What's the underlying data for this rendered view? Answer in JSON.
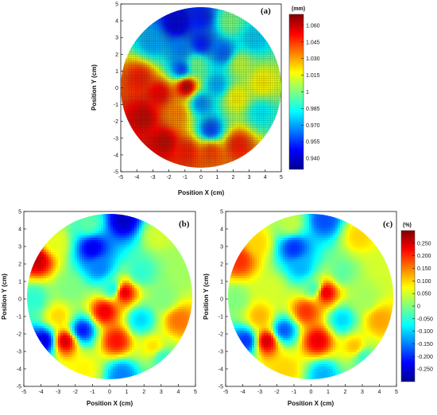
{
  "chart_data": [
    {
      "type": "heatmap",
      "panel_label": "(a)",
      "xlabel": "Position X (cm)",
      "ylabel": "Position Y (cm)",
      "xlim": [
        -5,
        5
      ],
      "ylim": [
        -5,
        5
      ],
      "xticks": [
        "-5",
        "-4",
        "-3",
        "-2",
        "-1",
        "0",
        "1",
        "2",
        "3",
        "4",
        "5"
      ],
      "yticks": [
        "-5",
        "-4",
        "-3",
        "-2",
        "-1",
        "0",
        "1",
        "2",
        "3",
        "4",
        "5"
      ],
      "grid": true,
      "colorbar": {
        "title": "(mm)",
        "range": [
          0.93,
          1.07
        ],
        "ticks": [
          "1.060",
          "1.045",
          "1.030",
          "1.015",
          "1",
          "0.985",
          "0.970",
          "0.955",
          "0.940"
        ],
        "tick_values": [
          1.06,
          1.045,
          1.03,
          1.015,
          1.0,
          0.985,
          0.97,
          0.955,
          0.94
        ]
      },
      "field": [
        {
          "x": 0.0,
          "y": 4.2,
          "v": 0.95
        },
        {
          "x": -1.5,
          "y": 3.8,
          "v": 0.94
        },
        {
          "x": -3.0,
          "y": 2.7,
          "v": 0.97
        },
        {
          "x": 1.8,
          "y": 3.9,
          "v": 1.0
        },
        {
          "x": 3.3,
          "y": 2.9,
          "v": 0.975
        },
        {
          "x": 0.0,
          "y": 2.6,
          "v": 0.95
        },
        {
          "x": -1.2,
          "y": 2.3,
          "v": 0.965
        },
        {
          "x": 1.4,
          "y": 2.1,
          "v": 0.96
        },
        {
          "x": -3.8,
          "y": 0.6,
          "v": 1.05
        },
        {
          "x": -2.6,
          "y": -0.3,
          "v": 1.055
        },
        {
          "x": -3.6,
          "y": -1.7,
          "v": 1.06
        },
        {
          "x": -2.3,
          "y": -3.2,
          "v": 1.06
        },
        {
          "x": -0.9,
          "y": -3.8,
          "v": 1.05
        },
        {
          "x": 0.6,
          "y": -3.8,
          "v": 1.045
        },
        {
          "x": 2.3,
          "y": -3.4,
          "v": 1.05
        },
        {
          "x": -0.9,
          "y": 0.1,
          "v": 1.065
        },
        {
          "x": 0.0,
          "y": -0.9,
          "v": 0.965
        },
        {
          "x": 1.0,
          "y": 0.2,
          "v": 0.97
        },
        {
          "x": 2.2,
          "y": -0.6,
          "v": 1.02
        },
        {
          "x": 3.8,
          "y": 0.3,
          "v": 1.02
        },
        {
          "x": 3.7,
          "y": -1.5,
          "v": 0.98
        },
        {
          "x": -1.2,
          "y": 1.1,
          "v": 0.955
        },
        {
          "x": 0.6,
          "y": -2.5,
          "v": 0.955
        },
        {
          "x": -1.5,
          "y": -1.6,
          "v": 1.035
        },
        {
          "x": 2.4,
          "y": 1.4,
          "v": 1.01
        },
        {
          "x": -0.3,
          "y": 1.4,
          "v": 1.0
        }
      ]
    },
    {
      "type": "heatmap",
      "panel_label": "(b)",
      "xlabel": "Position X (cm)",
      "ylabel": "Position Y (cm)",
      "xlim": [
        -5,
        5
      ],
      "ylim": [
        -5,
        5
      ],
      "xticks": [
        "-5",
        "-4",
        "-3",
        "-2",
        "-1",
        "0",
        "1",
        "2",
        "3",
        "4",
        "5"
      ],
      "yticks": [
        "-5",
        "-4",
        "-3",
        "-2",
        "-1",
        "0",
        "1",
        "2",
        "3",
        "4",
        "5"
      ],
      "grid": false,
      "field": [
        {
          "x": -4.2,
          "y": 2.2,
          "v": 0.26
        },
        {
          "x": -4.4,
          "y": 0.0,
          "v": -0.05
        },
        {
          "x": -3.8,
          "y": -2.4,
          "v": -0.25
        },
        {
          "x": -3.2,
          "y": 3.2,
          "v": 0.06
        },
        {
          "x": -1.2,
          "y": 4.3,
          "v": -0.02
        },
        {
          "x": 0.8,
          "y": 4.5,
          "v": -0.26
        },
        {
          "x": 2.8,
          "y": 3.6,
          "v": 0.05
        },
        {
          "x": 4.2,
          "y": 1.8,
          "v": 0.02
        },
        {
          "x": 4.0,
          "y": -1.2,
          "v": 0.16
        },
        {
          "x": 3.0,
          "y": -3.3,
          "v": -0.05
        },
        {
          "x": 0.7,
          "y": -4.3,
          "v": -0.15
        },
        {
          "x": -1.5,
          "y": -4.1,
          "v": 0.08
        },
        {
          "x": -2.6,
          "y": -2.4,
          "v": 0.26
        },
        {
          "x": -2.3,
          "y": 0.6,
          "v": 0.0
        },
        {
          "x": -1.6,
          "y": -1.8,
          "v": -0.22
        },
        {
          "x": 0.8,
          "y": 0.4,
          "v": 0.26
        },
        {
          "x": -0.3,
          "y": -0.7,
          "v": 0.24
        },
        {
          "x": 0.4,
          "y": -2.4,
          "v": 0.22
        },
        {
          "x": 1.8,
          "y": -1.2,
          "v": -0.1
        },
        {
          "x": 1.8,
          "y": 1.5,
          "v": -0.05
        },
        {
          "x": -0.6,
          "y": 1.8,
          "v": -0.15
        },
        {
          "x": 2.6,
          "y": -2.8,
          "v": 0.1
        },
        {
          "x": 3.2,
          "y": 0.0,
          "v": 0.0
        },
        {
          "x": -1.0,
          "y": 2.9,
          "v": -0.24
        },
        {
          "x": 0.2,
          "y": 0.6,
          "v": -0.08
        },
        {
          "x": -3.0,
          "y": -1.0,
          "v": 0.1
        }
      ]
    },
    {
      "type": "heatmap",
      "panel_label": "(c)",
      "xlabel": "Position X (cm)",
      "ylabel": "Position Y (cm)",
      "xlim": [
        -5,
        5
      ],
      "ylim": [
        -5,
        5
      ],
      "xticks": [
        "-5",
        "-4",
        "-3",
        "-2",
        "-1",
        "0",
        "1",
        "2",
        "3",
        "4",
        "5"
      ],
      "yticks": [
        "-5",
        "-4",
        "-3",
        "-2",
        "-1",
        "0",
        "1",
        "2",
        "3",
        "4",
        "5"
      ],
      "grid": false,
      "colorbar": {
        "title": "(%)",
        "range": [
          -0.3,
          0.3
        ],
        "ticks": [
          "0.250",
          "0.200",
          "0.150",
          "0.100",
          "0.050",
          "0",
          "-0.050",
          "-0.100",
          "-0.150",
          "-0.200",
          "-0.250"
        ],
        "tick_values": [
          0.25,
          0.2,
          0.15,
          0.1,
          0.05,
          0.0,
          -0.05,
          -0.1,
          -0.15,
          -0.2,
          -0.25
        ]
      },
      "field": [
        {
          "x": -4.2,
          "y": 2.2,
          "v": 0.2
        },
        {
          "x": -4.4,
          "y": 0.0,
          "v": 0.0
        },
        {
          "x": -3.8,
          "y": -2.4,
          "v": -0.2
        },
        {
          "x": -3.2,
          "y": 3.2,
          "v": 0.1
        },
        {
          "x": -1.2,
          "y": 4.3,
          "v": 0.04
        },
        {
          "x": 0.8,
          "y": 4.5,
          "v": -0.18
        },
        {
          "x": 2.8,
          "y": 3.6,
          "v": 0.1
        },
        {
          "x": 4.2,
          "y": 1.8,
          "v": 0.05
        },
        {
          "x": 4.0,
          "y": -1.2,
          "v": 0.13
        },
        {
          "x": 3.0,
          "y": -3.3,
          "v": -0.05
        },
        {
          "x": 0.7,
          "y": -4.3,
          "v": -0.12
        },
        {
          "x": -1.5,
          "y": -4.1,
          "v": 0.1
        },
        {
          "x": -2.6,
          "y": -2.4,
          "v": 0.26
        },
        {
          "x": -2.3,
          "y": 0.6,
          "v": 0.05
        },
        {
          "x": -1.6,
          "y": -1.8,
          "v": -0.18
        },
        {
          "x": 0.8,
          "y": 0.4,
          "v": 0.26
        },
        {
          "x": -0.3,
          "y": -0.7,
          "v": 0.2
        },
        {
          "x": 0.4,
          "y": -2.4,
          "v": 0.24
        },
        {
          "x": 1.8,
          "y": -1.2,
          "v": -0.1
        },
        {
          "x": 1.8,
          "y": 1.5,
          "v": -0.02
        },
        {
          "x": -0.6,
          "y": 1.8,
          "v": -0.12
        },
        {
          "x": 2.6,
          "y": -2.8,
          "v": 0.12
        },
        {
          "x": 3.2,
          "y": 0.0,
          "v": 0.02
        },
        {
          "x": -1.0,
          "y": 2.9,
          "v": -0.2
        },
        {
          "x": 0.2,
          "y": 0.6,
          "v": -0.05
        },
        {
          "x": -3.0,
          "y": -1.0,
          "v": 0.12
        }
      ]
    }
  ]
}
